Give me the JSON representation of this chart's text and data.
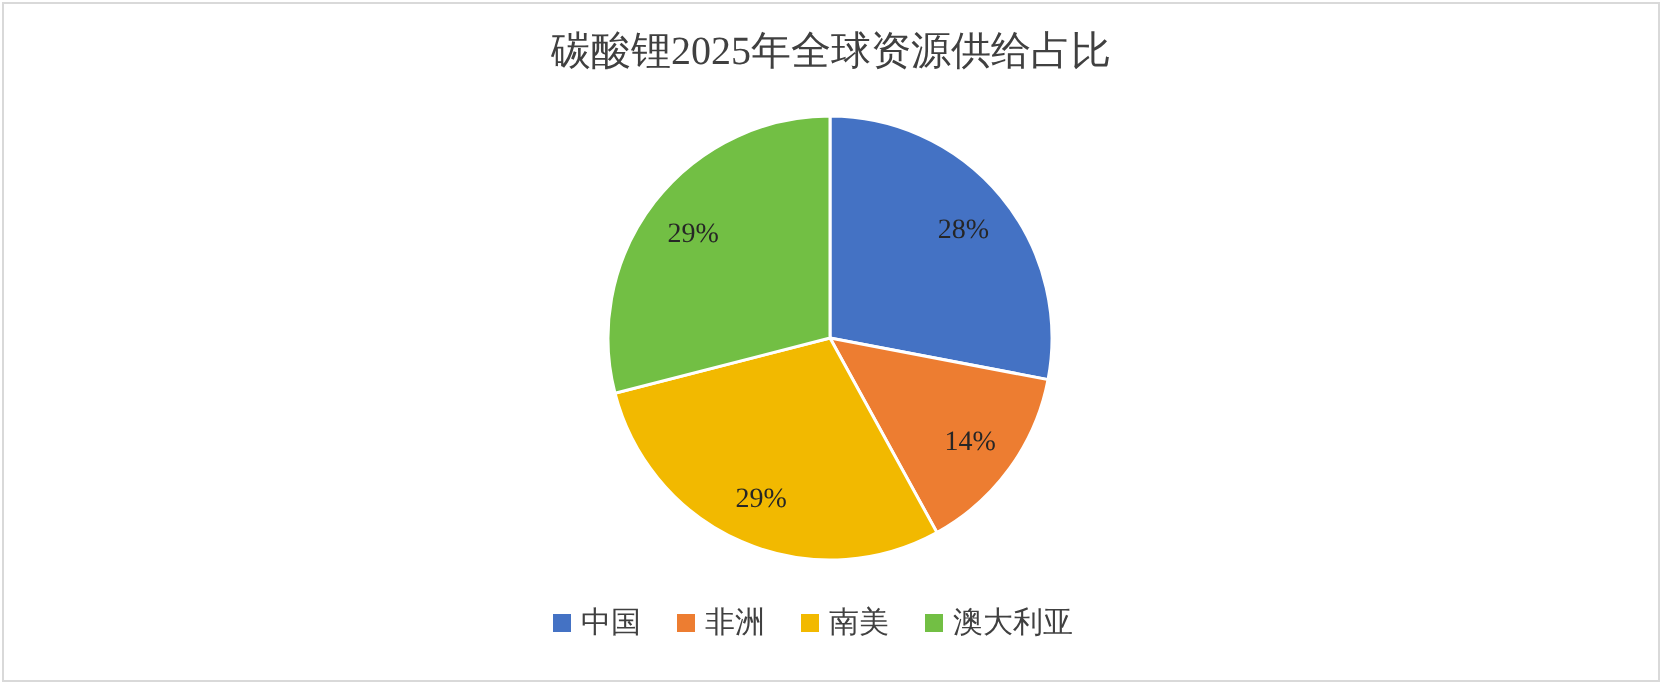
{
  "chart_data": {
    "type": "pie",
    "title": "碳酸锂2025年全球资源供给占比",
    "categories": [
      "中国",
      "非洲",
      "南美",
      "澳大利亚"
    ],
    "values": [
      28,
      14,
      29,
      29
    ],
    "colors": [
      "#4472c4",
      "#ed7d31",
      "#f2b900",
      "#72bf44"
    ],
    "value_labels": [
      "28%",
      "14%",
      "29%",
      "29%"
    ],
    "legend": "bottom"
  }
}
